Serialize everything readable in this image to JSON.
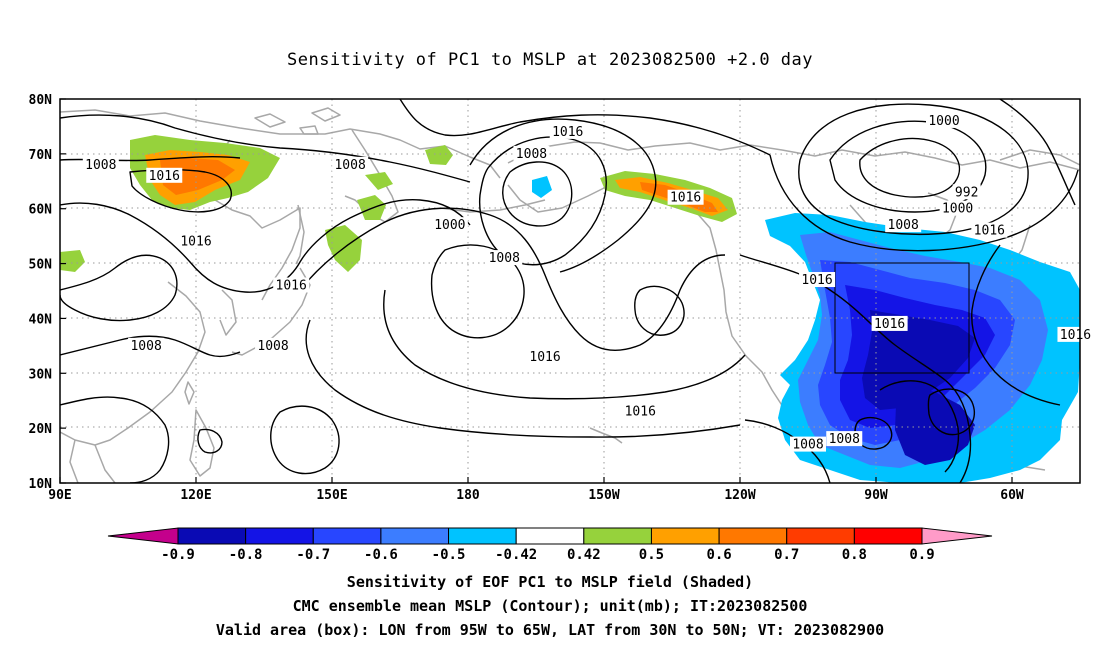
{
  "title": "Sensitivity of PC1 to MSLP at 2023082500 +2.0 day",
  "axes": {
    "lon_ticks": [
      {
        "lon": 90,
        "label": "90E"
      },
      {
        "lon": 120,
        "label": "120E"
      },
      {
        "lon": 150,
        "label": "150E"
      },
      {
        "lon": 180,
        "label": "180"
      },
      {
        "lon": 210,
        "label": "150W"
      },
      {
        "lon": 240,
        "label": "120W"
      },
      {
        "lon": 270,
        "label": "90W"
      },
      {
        "lon": 300,
        "label": "60W"
      }
    ],
    "lat_ticks": [
      {
        "lat": 80,
        "label": "80N"
      },
      {
        "lat": 70,
        "label": "70N"
      },
      {
        "lat": 60,
        "label": "60N"
      },
      {
        "lat": 50,
        "label": "50N"
      },
      {
        "lat": 40,
        "label": "40N"
      },
      {
        "lat": 30,
        "label": "30N"
      },
      {
        "lat": 20,
        "label": "20N"
      },
      {
        "lat": 10,
        "label": "10N"
      }
    ],
    "lon_range_deg_east": [
      90,
      315
    ],
    "lat_range": [
      10,
      80
    ],
    "grid": "dotted"
  },
  "valid_box": {
    "lon_west": 95,
    "lon_east": 65,
    "lat_south": 30,
    "lat_north": 50
  },
  "contour_labels": [
    {
      "text": "1016",
      "lon": 202,
      "lat": 74
    },
    {
      "text": "1000",
      "lon": 285,
      "lat": 76
    },
    {
      "text": "1008",
      "lon": 99,
      "lat": 68
    },
    {
      "text": "1016",
      "lon": 113,
      "lat": 66
    },
    {
      "text": "1008",
      "lon": 154,
      "lat": 68
    },
    {
      "text": "1008",
      "lon": 194,
      "lat": 70
    },
    {
      "text": "1016",
      "lon": 228,
      "lat": 62
    },
    {
      "text": "1000",
      "lon": 176,
      "lat": 57
    },
    {
      "text": "992",
      "lon": 290,
      "lat": 63
    },
    {
      "text": "1000",
      "lon": 288,
      "lat": 60
    },
    {
      "text": "1008",
      "lon": 276,
      "lat": 57
    },
    {
      "text": "1016",
      "lon": 295,
      "lat": 56
    },
    {
      "text": "1016",
      "lon": 120,
      "lat": 54
    },
    {
      "text": "1008",
      "lon": 188,
      "lat": 51
    },
    {
      "text": "1016",
      "lon": 257,
      "lat": 47
    },
    {
      "text": "1016",
      "lon": 141,
      "lat": 46
    },
    {
      "text": "1016",
      "lon": 273,
      "lat": 39
    },
    {
      "text": "1016",
      "lon": 314,
      "lat": 37
    },
    {
      "text": "1008",
      "lon": 109,
      "lat": 35
    },
    {
      "text": "1008",
      "lon": 137,
      "lat": 35
    },
    {
      "text": "1016",
      "lon": 197,
      "lat": 33
    },
    {
      "text": "1016",
      "lon": 218,
      "lat": 23
    },
    {
      "text": "1008",
      "lon": 255,
      "lat": 17
    },
    {
      "text": "1008",
      "lon": 263,
      "lat": 18
    }
  ],
  "shading_colors": {
    "neg_0.9_plus": "#c4008c",
    "neg_0.9": "#0a0ab4",
    "neg_0.8": "#1414e6",
    "neg_0.7": "#2846ff",
    "neg_0.6": "#3c7dff",
    "neg_0.5": "#00c3ff",
    "neutral": "#ffffff",
    "pos_0.42": "#96d23c",
    "pos_0.5": "#ffa000",
    "pos_0.6": "#ff7800",
    "pos_0.7": "#ff3c00",
    "pos_0.8": "#ff0000",
    "pos_0.9_plus": "#ff9bc8"
  },
  "colorbar": {
    "labels": [
      "-0.9",
      "-0.8",
      "-0.7",
      "-0.6",
      "-0.5",
      "-0.42",
      "0.42",
      "0.5",
      "0.6",
      "0.7",
      "0.8",
      "0.9"
    ],
    "colors": [
      "#0a0ab4",
      "#1414e6",
      "#2846ff",
      "#3c7dff",
      "#00c3ff",
      "#ffffff",
      "#96d23c",
      "#ffa000",
      "#ff7800",
      "#ff3c00",
      "#ff0000"
    ],
    "low_end_color": "#c4008c",
    "high_end_color": "#ff9bc8"
  },
  "captions": {
    "line1": "Sensitivity of EOF PC1 to MSLP field (Shaded)",
    "line2": "CMC ensemble mean MSLP (Contour); unit(mb); IT:2023082500",
    "line3": "Valid area (box): LON from 95W to 65W, LAT from 30N to 50N; VT: 2023082900"
  }
}
